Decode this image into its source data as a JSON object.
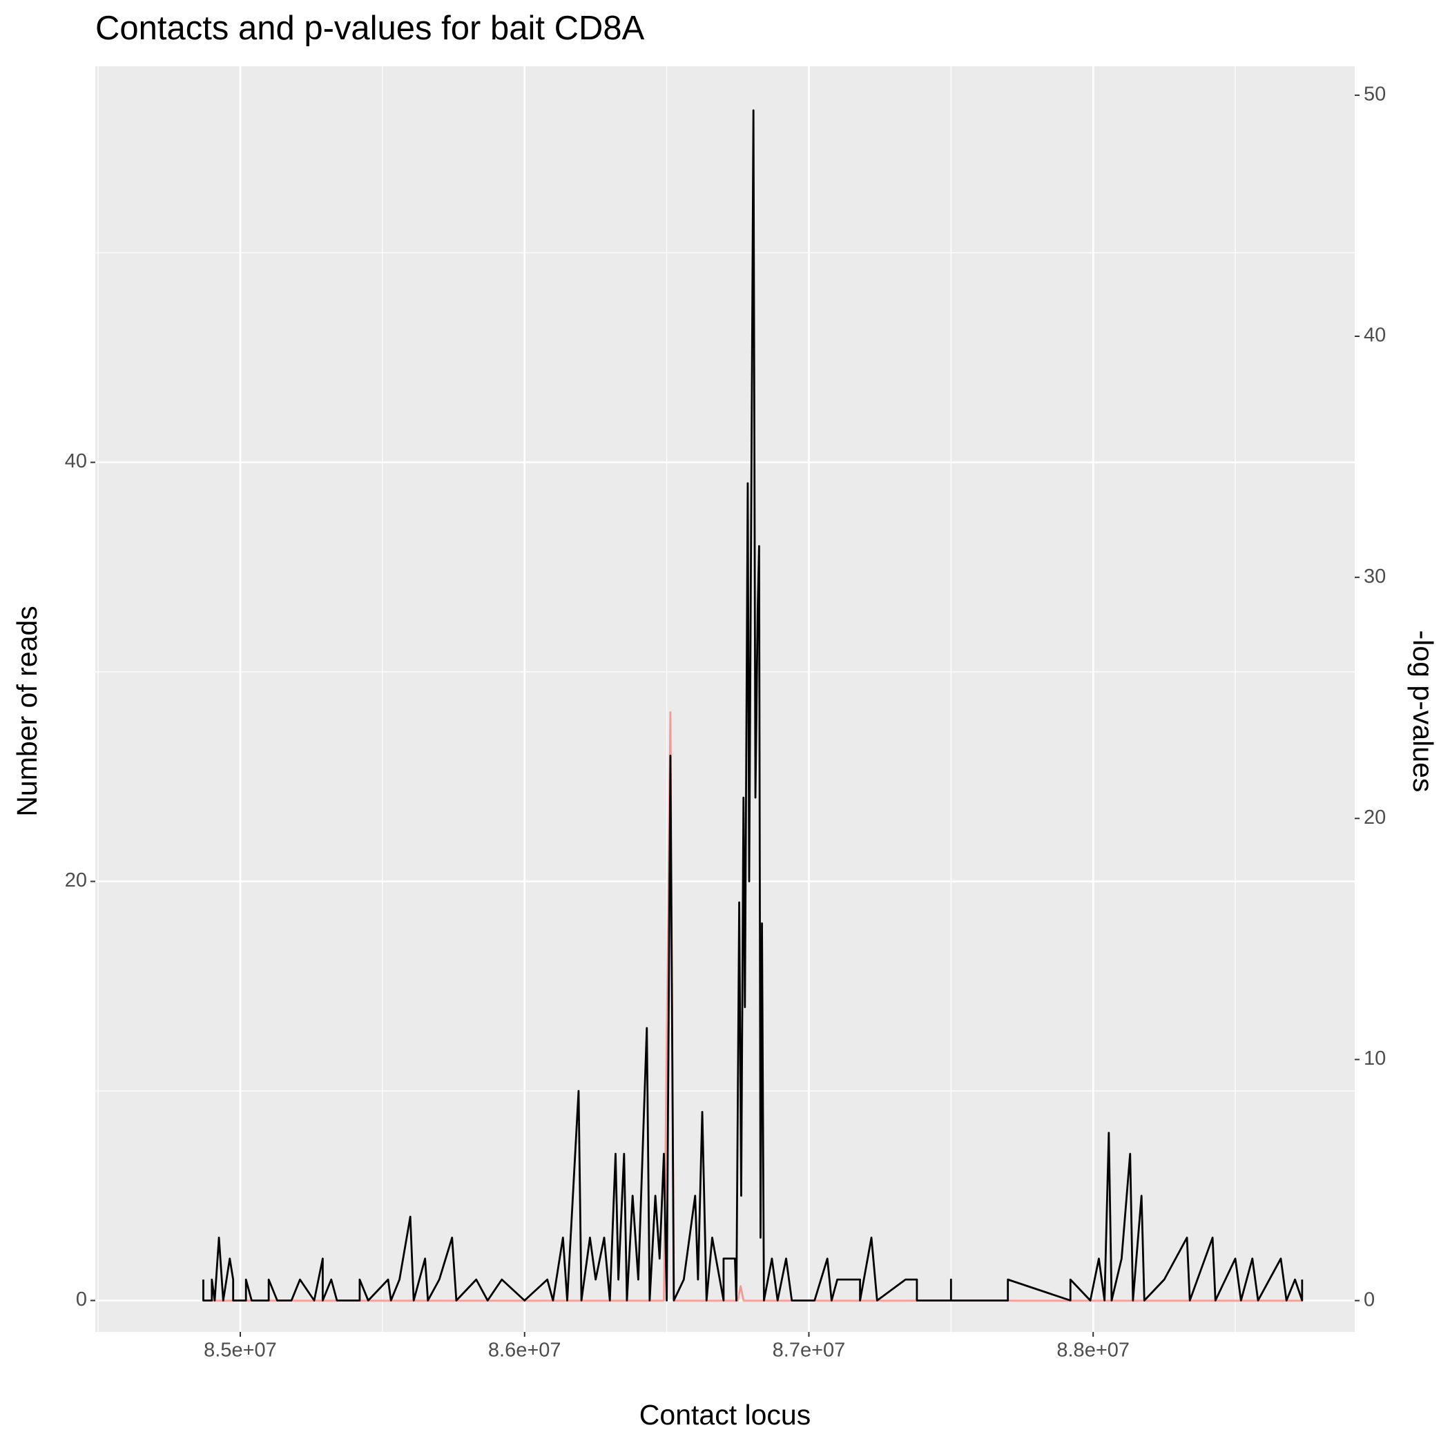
{
  "chart_data": {
    "type": "line",
    "title": "Contacts and p-values for bait CD8A",
    "xlabel": "Contact locus",
    "ylabel": "Number of reads",
    "y2label": "-log p-values",
    "xlim": [
      84490000,
      88920000
    ],
    "xticks": [
      {
        "value": 85000000,
        "label": "8.5e+07"
      },
      {
        "value": 86000000,
        "label": "8.6e+07"
      },
      {
        "value": 87000000,
        "label": "8.7e+07"
      },
      {
        "value": 88000000,
        "label": "8.8e+07"
      }
    ],
    "xticks_minor": [
      84500000,
      85500000,
      86500000,
      87500000,
      88500000
    ],
    "ylim": [
      -1.5,
      58.9
    ],
    "yticks": [
      0,
      20,
      40
    ],
    "yticks_minor": [
      10,
      30,
      50
    ],
    "y2lim": [
      -1.3,
      51.2
    ],
    "y2ticks": [
      0,
      10,
      20,
      30,
      40,
      50
    ],
    "grid": true,
    "series": [
      {
        "color": "#f8766d",
        "axis": "y2",
        "x": [
          84870000,
          86490000,
          86513000,
          86525000,
          86750000,
          86760000,
          86770000,
          88735000
        ],
        "values": [
          0,
          0,
          24.4,
          0,
          0,
          0.6,
          0,
          0
        ]
      },
      {
        "color": "#000000",
        "x": [
          84870000,
          84870000,
          84900000,
          84900000,
          84910000,
          84925000,
          84940000,
          84963000,
          84975000,
          84975000,
          85020000,
          85020000,
          85040000,
          85100000,
          85100000,
          85130000,
          85180000,
          85210000,
          85260000,
          85290000,
          85290000,
          85320000,
          85340000,
          85420000,
          85420000,
          85450000,
          85520000,
          85530000,
          85560000,
          85598000,
          85610000,
          85650000,
          85660000,
          85700000,
          85745000,
          85760000,
          85830000,
          85870000,
          85920000,
          86000000,
          86080000,
          86100000,
          86135000,
          86150000,
          86190000,
          86200000,
          86230000,
          86250000,
          86280000,
          86300000,
          86320000,
          86330000,
          86350000,
          86360000,
          86380000,
          86400000,
          86430000,
          86440000,
          86460000,
          86475000,
          86490000,
          86500000,
          86513000,
          86525000,
          86560000,
          86600000,
          86610000,
          86625000,
          86640000,
          86660000,
          86700000,
          86700000,
          86740000,
          86745000,
          86755000,
          86762000,
          86770000,
          86775000,
          86785000,
          86790000,
          86805000,
          86812000,
          86820000,
          86825000,
          86830000,
          86835000,
          86842000,
          86870000,
          86890000,
          86920000,
          86940000,
          87020000,
          87065000,
          87080000,
          87100000,
          87180000,
          87180000,
          87220000,
          87240000,
          87340000,
          87380000,
          87380000,
          87500000,
          87500000,
          87500000,
          87700000,
          87700000,
          87920000,
          87920000,
          87990000,
          88020000,
          88040000,
          88055000,
          88065000,
          88100000,
          88130000,
          88140000,
          88170000,
          88180000,
          88250000,
          88330000,
          88340000,
          88420000,
          88430000,
          88500000,
          88520000,
          88560000,
          88580000,
          88660000,
          88680000,
          88710000,
          88735000,
          88735000
        ],
        "values": [
          1,
          0,
          0,
          1,
          0,
          3,
          0,
          2,
          1,
          0,
          0,
          1,
          0,
          0,
          1,
          0,
          0,
          1,
          0,
          2,
          0,
          1,
          0,
          0,
          1,
          0,
          1,
          0,
          1,
          4,
          0,
          2,
          0,
          1,
          3,
          0,
          1,
          0,
          1,
          0,
          1,
          0,
          3,
          0,
          10,
          0,
          3,
          1,
          3,
          0,
          7,
          1,
          7,
          0,
          5,
          1,
          13,
          0,
          5,
          2,
          7,
          0,
          26,
          0,
          1,
          5,
          1,
          9,
          0,
          3,
          0,
          2,
          2,
          0,
          19,
          5,
          24,
          14,
          39,
          20,
          56.8,
          24,
          33,
          36,
          3,
          18,
          0,
          2,
          0,
          2,
          0,
          0,
          2,
          0,
          1,
          1,
          0,
          3,
          0,
          1,
          1,
          0,
          0,
          1,
          0,
          0,
          1,
          0,
          1,
          0,
          2,
          0,
          8,
          0,
          2,
          7,
          0,
          5,
          0,
          1,
          3,
          0,
          3,
          0,
          2,
          0,
          2,
          0,
          2,
          0,
          1,
          0,
          1
        ]
      }
    ]
  }
}
